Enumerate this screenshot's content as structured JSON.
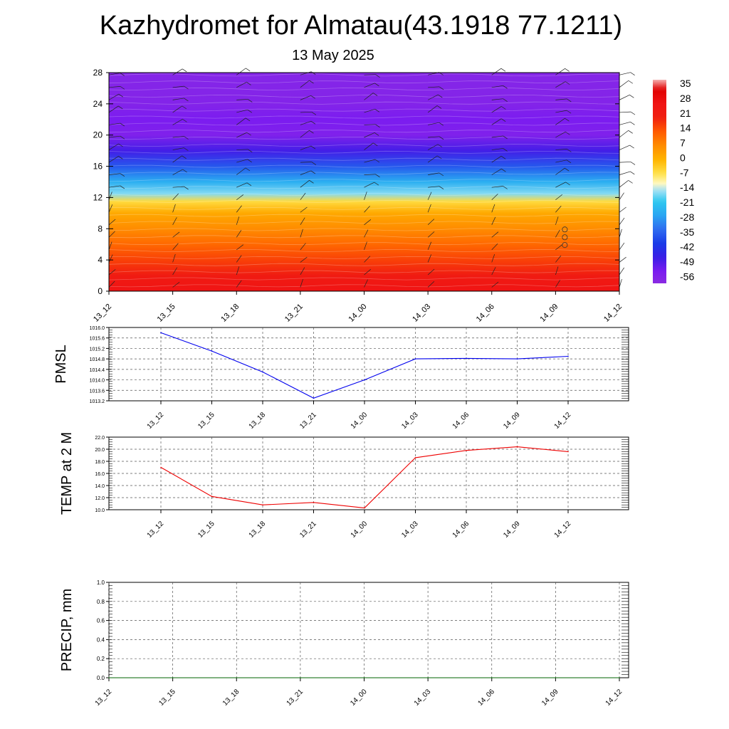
{
  "title": "Kazhydromet for Almatau(43.1918 77.1211)",
  "subtitle": "13 May 2025",
  "time_labels": [
    "13_12",
    "13_15",
    "13_18",
    "13_21",
    "14_00",
    "14_03",
    "14_06",
    "14_09",
    "14_12"
  ],
  "chart_data": [
    {
      "type": "heatmap",
      "xlabel": "",
      "ylabel": "",
      "x": [
        "13_12",
        "13_15",
        "13_18",
        "13_21",
        "14_00",
        "14_03",
        "14_06",
        "14_09",
        "14_12"
      ],
      "ylim": [
        0,
        28
      ],
      "yticks": [
        0,
        4,
        8,
        12,
        16,
        20,
        24,
        28
      ],
      "colorbar_ticks": [
        35,
        28,
        21,
        14,
        7,
        0,
        -7,
        -14,
        -21,
        -28,
        -35,
        -42,
        -49,
        -56
      ],
      "temperature_profile": [
        {
          "level": 0,
          "value": 28
        },
        {
          "level": 2,
          "value": 24
        },
        {
          "level": 4,
          "value": 17
        },
        {
          "level": 6,
          "value": 12
        },
        {
          "level": 8,
          "value": 7
        },
        {
          "level": 10,
          "value": 2
        },
        {
          "level": 11.5,
          "value": -6
        },
        {
          "level": 12.5,
          "value": -17
        },
        {
          "level": 14,
          "value": -26
        },
        {
          "level": 16,
          "value": -38
        },
        {
          "level": 18,
          "value": -50
        },
        {
          "level": 20,
          "value": -58
        },
        {
          "level": 22,
          "value": -56
        },
        {
          "level": 24,
          "value": -59
        },
        {
          "level": 28,
          "value": -60
        }
      ],
      "wind_barbs": true
    },
    {
      "type": "line",
      "ylabel": "PMSL",
      "x": [
        "13_12",
        "13_15",
        "13_18",
        "13_21",
        "14_00",
        "14_03",
        "14_06",
        "14_09",
        "14_12"
      ],
      "series": [
        {
          "values": [
            1015.8,
            1015.1,
            1014.3,
            1013.3,
            1014.0,
            1014.8,
            1014.82,
            1014.8,
            1014.9
          ]
        }
      ],
      "ylim": [
        1013.2,
        1016.0
      ],
      "yticks": [
        "1016.0",
        "1015.6",
        "1015.2",
        "1014.8",
        "1014.4",
        "1014.0",
        "1013.6",
        "1013.2"
      ],
      "color": "#0000ee",
      "grid": true
    },
    {
      "type": "line",
      "ylabel": "TEMP at 2 M",
      "x": [
        "13_12",
        "13_15",
        "13_18",
        "13_21",
        "14_00",
        "14_03",
        "14_06",
        "14_09",
        "14_12"
      ],
      "series": [
        {
          "values": [
            17.0,
            12.2,
            10.8,
            11.2,
            10.3,
            18.6,
            19.8,
            20.4,
            19.6
          ]
        }
      ],
      "ylim": [
        10.0,
        22.0
      ],
      "yticks": [
        "22.0",
        "20.0",
        "18.0",
        "16.0",
        "14.0",
        "12.0",
        "10.0"
      ],
      "color": "#ee0000",
      "grid": true
    },
    {
      "type": "line",
      "ylabel": "PRECIP, mm",
      "x": [
        "13_12",
        "13_15",
        "13_18",
        "13_21",
        "14_00",
        "14_03",
        "14_06",
        "14_09",
        "14_12"
      ],
      "series": [
        {
          "values": [
            0,
            0,
            0,
            0,
            0,
            0,
            0,
            0,
            0
          ]
        }
      ],
      "ylim": [
        0.0,
        1.0
      ],
      "yticks": [
        "1.0",
        "0.8",
        "0.6",
        "0.4",
        "0.2",
        "0.0"
      ],
      "color": "#006400",
      "grid": true
    }
  ]
}
